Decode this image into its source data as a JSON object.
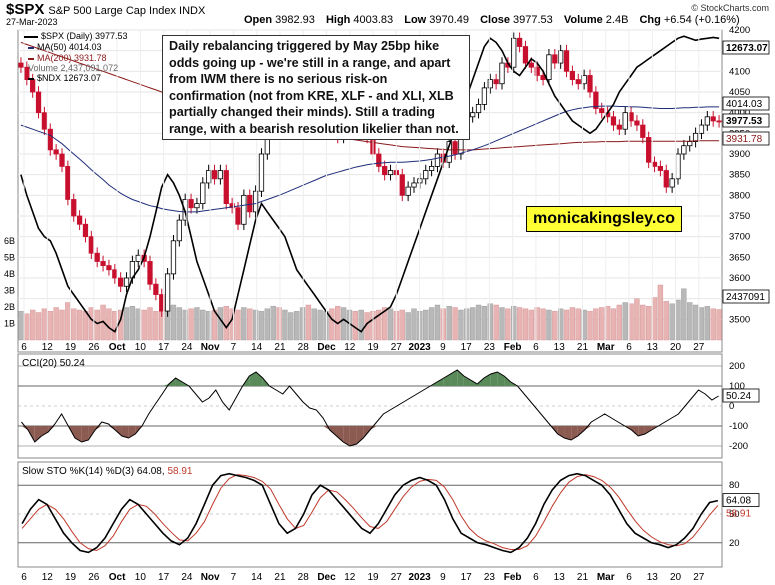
{
  "header": {
    "symbol": "$SPX",
    "name": "S&P 500 Large Cap Index INDX",
    "date": "27-Mar-2023",
    "open_label": "Open",
    "open": "3982.93",
    "high_label": "High",
    "high": "4003.83",
    "low_label": "Low",
    "low": "3970.49",
    "close_label": "Close",
    "close": "3977.53",
    "volume_label": "Volume",
    "volume": "2.4B",
    "chg_label": "Chg",
    "chg": "+6.54 (+0.16%)",
    "brand": "© StockCharts.com"
  },
  "legend": {
    "spx": "$SPX (Daily) 3977.53",
    "ma50": "MA(50) 4014.03",
    "ma200": "MA(200) 3931.78",
    "volume": "Volume 2,437,091,072",
    "ndx": "$NDX 12673.07"
  },
  "annotation": "Daily rebalancing triggered by May 25bp hike odds going up - we're still in a range, and apart from IWM there is no serious risk-on confirmation (not from KRE, XLF - and XLI, XLB partially changed their minds). Still a trading range, with a bearish resolution likelier than not.",
  "watermark": "monicakingsley.co",
  "colors": {
    "up": "#000000",
    "down": "#c8102e",
    "ma50": "#1f2d7a",
    "ma200": "#8b1a1a",
    "cci_pos": "#5a8a5a",
    "cci_neg": "#8b5a50",
    "stoch_d": "#c0392b"
  },
  "chart_data": [
    {
      "type": "candlestick",
      "title": "$SPX S&P 500 Large Cap Index INDX",
      "ylim": [
        3450,
        4200
      ],
      "y_ticks": [
        3500,
        3550,
        3600,
        3650,
        3700,
        3750,
        3800,
        3850,
        3900,
        3950,
        4000,
        4050,
        4100,
        4150,
        4200
      ],
      "right_labels": [
        "12673.07",
        "4014.03",
        "3977.53",
        "3931.78",
        "2437091"
      ],
      "volume_ticks": [
        "1B",
        "2B",
        "3B",
        "4B",
        "5B",
        "6B"
      ],
      "x_ticks": [
        "6",
        "12",
        "19",
        "26",
        "Oct",
        "10",
        "17",
        "24",
        "Nov",
        "7",
        "14",
        "21",
        "28",
        "Dec",
        "12",
        "19",
        "27",
        "2023",
        "9",
        "17",
        "23",
        "Feb",
        "6",
        "13",
        "21",
        "Mar",
        "6",
        "13",
        "20",
        "27"
      ],
      "close": [
        4110,
        4080,
        4050,
        4000,
        3960,
        3910,
        3900,
        3870,
        3790,
        3750,
        3730,
        3700,
        3660,
        3640,
        3630,
        3620,
        3600,
        3580,
        3600,
        3640,
        3655,
        3640,
        3585,
        3560,
        3520,
        3610,
        3690,
        3740,
        3790,
        3770,
        3780,
        3830,
        3860,
        3840,
        3860,
        3780,
        3770,
        3730,
        3800,
        3760,
        3810,
        3900,
        3960,
        3990,
        3970,
        3990,
        4000,
        4020,
        4030,
        4010,
        4030,
        4070,
        4080,
        3980,
        3940,
        3950,
        3990,
        3980,
        3980,
        3940,
        3900,
        3870,
        3850,
        3860,
        3850,
        3800,
        3820,
        3830,
        3840,
        3860,
        3870,
        3900,
        3880,
        3930,
        3900,
        3960,
        3990,
        4000,
        4020,
        4060,
        4080,
        4070,
        4120,
        4110,
        4180,
        4160,
        4120,
        4110,
        4090,
        4080,
        4140,
        4120,
        4150,
        4100,
        4080,
        4070,
        4090,
        4050,
        4010,
        4000,
        3990,
        3970,
        3960,
        4000,
        3980,
        3970,
        3940,
        3880,
        3870,
        3860,
        3820,
        3840,
        3900,
        3920,
        3930,
        3950,
        3970,
        3990,
        3980,
        3978
      ],
      "ma50": [
        3970,
        3965,
        3960,
        3955,
        3950,
        3945,
        3935,
        3925,
        3912,
        3900,
        3888,
        3875,
        3862,
        3850,
        3838,
        3825,
        3815,
        3805,
        3797,
        3790,
        3785,
        3780,
        3775,
        3772,
        3768,
        3765,
        3763,
        3761,
        3760,
        3760,
        3760,
        3762,
        3764,
        3766,
        3768,
        3770,
        3772,
        3774,
        3776,
        3778,
        3780,
        3785,
        3790,
        3795,
        3800,
        3806,
        3812,
        3818,
        3824,
        3830,
        3836,
        3842,
        3848,
        3852,
        3856,
        3860,
        3864,
        3868,
        3871,
        3874,
        3876,
        3878,
        3879,
        3880,
        3880,
        3880,
        3881,
        3882,
        3883,
        3885,
        3887,
        3890,
        3892,
        3895,
        3898,
        3902,
        3906,
        3910,
        3915,
        3920,
        3926,
        3932,
        3938,
        3944,
        3950,
        3956,
        3962,
        3968,
        3974,
        3980,
        3986,
        3992,
        3998,
        4003,
        4007,
        4010,
        4012,
        4014,
        4015,
        4016,
        4016,
        4016,
        4015,
        4015,
        4014,
        4014,
        4013,
        4012,
        4011,
        4010,
        4010,
        4010,
        4011,
        4012,
        4012,
        4013,
        4013,
        4014,
        4014,
        4014
      ],
      "ma200": [
        4170,
        4165,
        4160,
        4155,
        4150,
        4145,
        4140,
        4135,
        4130,
        4125,
        4120,
        4115,
        4110,
        4105,
        4100,
        4095,
        4090,
        4085,
        4080,
        4075,
        4070,
        4065,
        4060,
        4055,
        4050,
        4045,
        4040,
        4035,
        4030,
        4025,
        4020,
        4015,
        4010,
        4006,
        4002,
        3998,
        3994,
        3990,
        3986,
        3982,
        3978,
        3975,
        3972,
        3969,
        3966,
        3963,
        3960,
        3957,
        3954,
        3951,
        3948,
        3946,
        3944,
        3942,
        3940,
        3938,
        3936,
        3934,
        3932,
        3930,
        3928,
        3926,
        3924,
        3922,
        3920,
        3918,
        3917,
        3916,
        3915,
        3914,
        3913,
        3912,
        3911,
        3910,
        3910,
        3910,
        3910,
        3910,
        3911,
        3912,
        3913,
        3914,
        3915,
        3916,
        3917,
        3918,
        3919,
        3920,
        3921,
        3922,
        3923,
        3924,
        3925,
        3926,
        3927,
        3928,
        3928,
        3929,
        3929,
        3930,
        3930,
        3930,
        3930,
        3931,
        3931,
        3931,
        3931,
        3931,
        3931,
        3931,
        3931,
        3931,
        3931,
        3931,
        3931,
        3932,
        3932,
        3932,
        3932,
        3932
      ],
      "ndx": [
        3850,
        3800,
        3760,
        3720,
        3700,
        3690,
        3660,
        3620,
        3580,
        3560,
        3540,
        3520,
        3500,
        3490,
        3495,
        3480,
        3470,
        3500,
        3560,
        3600,
        3620,
        3650,
        3700,
        3760,
        3820,
        3850,
        3830,
        3800,
        3760,
        3700,
        3640,
        3600,
        3560,
        3520,
        3500,
        3480,
        3500,
        3560,
        3620,
        3680,
        3740,
        3780,
        3760,
        3740,
        3720,
        3700,
        3660,
        3620,
        3600,
        3580,
        3560,
        3540,
        3520,
        3500,
        3490,
        3500,
        3490,
        3480,
        3470,
        3490,
        3500,
        3510,
        3520,
        3530,
        3560,
        3600,
        3640,
        3680,
        3720,
        3760,
        3800,
        3840,
        3880,
        3920,
        3960,
        4000,
        4040,
        4080,
        4120,
        4160,
        4180,
        4170,
        4150,
        4120,
        4100,
        4090,
        4110,
        4130,
        4120,
        4100,
        4070,
        4040,
        4020,
        4000,
        3980,
        3970,
        3960,
        3950,
        3960,
        3980,
        4000,
        4020,
        4050,
        4070,
        4090,
        4110,
        4120,
        4130,
        4140,
        4150,
        4160,
        4170,
        4180,
        4185,
        4180,
        4175,
        4178,
        4180,
        4182,
        4180
      ],
      "volume": [
        2.3,
        2.1,
        2.4,
        2.2,
        2.5,
        2.3,
        2.6,
        2.4,
        3.0,
        2.5,
        2.4,
        2.3,
        2.6,
        2.4,
        2.8,
        2.5,
        2.3,
        2.4,
        2.6,
        2.7,
        2.5,
        2.4,
        2.6,
        2.3,
        2.5,
        2.7,
        2.8,
        2.6,
        2.4,
        2.5,
        2.6,
        2.4,
        2.3,
        2.4,
        2.6,
        2.7,
        2.5,
        2.4,
        2.6,
        2.5,
        2.4,
        2.3,
        2.5,
        2.7,
        2.6,
        2.4,
        2.2,
        2.3,
        2.6,
        2.8,
        2.5,
        2.4,
        2.3,
        2.5,
        2.7,
        2.6,
        2.4,
        2.3,
        2.4,
        2.2,
        2.3,
        2.4,
        2.6,
        2.5,
        2.3,
        2.4,
        2.2,
        2.5,
        2.3,
        2.4,
        2.6,
        2.8,
        2.5,
        2.7,
        2.6,
        2.4,
        2.5,
        2.6,
        2.8,
        2.7,
        2.9,
        2.8,
        2.6,
        2.5,
        2.7,
        2.6,
        2.5,
        2.4,
        2.6,
        2.5,
        2.4,
        2.3,
        2.5,
        2.4,
        2.6,
        2.5,
        2.4,
        2.3,
        2.5,
        2.6,
        2.7,
        2.5,
        2.8,
        3.0,
        2.9,
        3.3,
        2.8,
        2.7,
        3.4,
        4.4,
        3.1,
        2.9,
        3.2,
        4.1,
        3.0,
        2.8,
        2.6,
        2.7,
        2.5,
        2.44
      ]
    },
    {
      "type": "line",
      "title": "CCI(20) 50.24",
      "ylim": [
        -250,
        250
      ],
      "y_ticks": [
        200,
        100,
        0,
        -100,
        -200
      ],
      "right_labels": [
        "50.24"
      ],
      "values": [
        -80,
        -120,
        -180,
        -150,
        -130,
        -90,
        -40,
        -100,
        -160,
        -180,
        -170,
        -120,
        -80,
        -90,
        -120,
        -150,
        -160,
        -140,
        -100,
        -40,
        10,
        60,
        110,
        140,
        120,
        100,
        60,
        20,
        40,
        80,
        20,
        -20,
        40,
        100,
        150,
        170,
        140,
        100,
        80,
        60,
        100,
        60,
        20,
        -10,
        -20,
        -60,
        -120,
        -150,
        -180,
        -200,
        -190,
        -160,
        -120,
        -80,
        -40,
        -20,
        0,
        20,
        40,
        60,
        80,
        100,
        120,
        140,
        160,
        180,
        150,
        130,
        110,
        140,
        160,
        170,
        150,
        120,
        100,
        60,
        20,
        -20,
        -60,
        -100,
        -140,
        -160,
        -170,
        -150,
        -120,
        -80,
        -60,
        -40,
        -60,
        -80,
        -100,
        -120,
        -150,
        -140,
        -120,
        -100,
        -80,
        -60,
        -40,
        0,
        40,
        80,
        60,
        30,
        50
      ]
    },
    {
      "type": "line",
      "title": "Slow STO %K(14) %D(3) 64.08, 58.91",
      "ylim": [
        0,
        100
      ],
      "y_ticks": [
        80,
        50,
        20
      ],
      "right_labels": [
        "64.08",
        "58.91"
      ],
      "series": [
        {
          "name": "%K(14)",
          "values": [
            40,
            55,
            65,
            60,
            45,
            30,
            20,
            12,
            10,
            15,
            25,
            40,
            55,
            65,
            60,
            50,
            40,
            30,
            22,
            18,
            25,
            40,
            60,
            80,
            90,
            92,
            90,
            88,
            85,
            80,
            60,
            40,
            30,
            35,
            50,
            70,
            80,
            75,
            65,
            55,
            45,
            35,
            30,
            40,
            55,
            70,
            80,
            85,
            88,
            85,
            80,
            65,
            45,
            30,
            25,
            20,
            18,
            15,
            12,
            10,
            15,
            25,
            40,
            60,
            75,
            85,
            90,
            92,
            90,
            85,
            80,
            70,
            55,
            40,
            30,
            25,
            20,
            18,
            15,
            18,
            25,
            35,
            50,
            62,
            64
          ]
        },
        {
          "name": "%D(3)",
          "values": [
            35,
            45,
            55,
            60,
            55,
            45,
            32,
            20,
            14,
            12,
            17,
            27,
            42,
            55,
            60,
            58,
            50,
            40,
            31,
            23,
            22,
            30,
            42,
            60,
            77,
            87,
            91,
            90,
            88,
            84,
            76,
            60,
            45,
            35,
            38,
            52,
            67,
            75,
            73,
            65,
            56,
            46,
            37,
            35,
            42,
            55,
            68,
            78,
            84,
            86,
            85,
            78,
            65,
            48,
            35,
            27,
            22,
            19,
            15,
            13,
            13,
            17,
            27,
            42,
            58,
            72,
            83,
            89,
            91,
            89,
            85,
            78,
            68,
            55,
            43,
            33,
            26,
            21,
            18,
            17,
            19,
            26,
            37,
            49,
            59
          ]
        }
      ]
    }
  ]
}
